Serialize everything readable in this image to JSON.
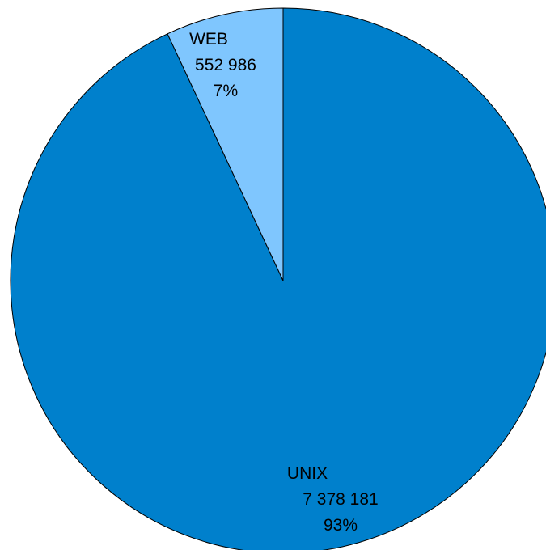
{
  "chart_data": {
    "type": "pie",
    "title": "",
    "start_angle_deg": 0,
    "direction": "clockwise",
    "slices": [
      {
        "label": "UNIX",
        "value": 7378181,
        "value_text": "7 378 181",
        "percent_text": "93%",
        "color": "#0080cc"
      },
      {
        "label": "WEB",
        "value": 552986,
        "value_text": "552 986",
        "percent_text": "7%",
        "color": "#7fc6fe"
      }
    ],
    "legend": "none"
  }
}
